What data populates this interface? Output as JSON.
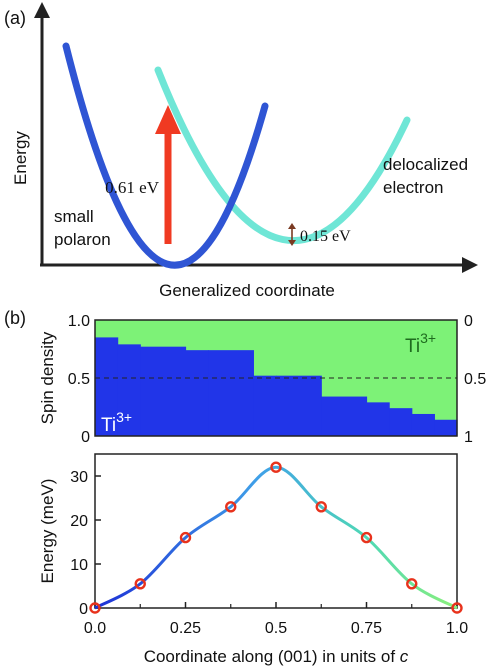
{
  "panel_a": {
    "label": "(a)",
    "ylabel": "Energy",
    "xlabel": "Generalized coordinate",
    "label_small": "small",
    "label_polaron": "polaron",
    "label_delocalized": "delocalized",
    "label_electron": "electron",
    "gap_label": "0.61 eV",
    "offset_label": "0.15 eV",
    "colors": {
      "polaron": "#2f55d4",
      "electron": "#6fe6d6",
      "arrow": "#f03a22"
    }
  },
  "panel_b": {
    "label": "(b)",
    "spin": {
      "ylabel": "Spin density",
      "left_ticks": [
        "1.0",
        "0.5",
        "0"
      ],
      "right_ticks": [
        "0",
        "0.5",
        "1"
      ],
      "ti_label": "Ti",
      "ti_sup": "3+",
      "colors": {
        "blue": "#2135e8",
        "green": "#7df277"
      }
    },
    "energy": {
      "ylabel": "Energy  (meV)",
      "xlabel_main": "Coordinate along (001) in units of ",
      "xlabel_italic": "c",
      "yticks": [
        "0",
        "10",
        "20",
        "30"
      ],
      "xticks": [
        "0.0",
        "0.25",
        "0.5",
        "0.75",
        "1.0"
      ]
    }
  },
  "chart_data": [
    {
      "type": "line",
      "title": "",
      "xlabel": "Generalized coordinate",
      "ylabel": "Energy",
      "series": [
        {
          "name": "small polaron",
          "shape": "parabola",
          "relative_minimum_ev": 0.0
        },
        {
          "name": "delocalized electron",
          "shape": "parabola",
          "relative_minimum_ev": 0.15
        }
      ],
      "annotations": [
        {
          "text": "0.61 eV",
          "type": "vertical-arrow",
          "value_ev": 0.61
        },
        {
          "text": "0.15 eV",
          "type": "double-arrow",
          "value_ev": 0.15
        }
      ]
    },
    {
      "type": "area",
      "ylabel": "Spin density",
      "ylim": [
        0,
        1
      ],
      "x": [
        0.0,
        0.0625,
        0.125,
        0.25,
        0.3125,
        0.4375,
        0.5,
        0.625,
        0.75,
        0.8125,
        0.875,
        0.9375,
        1.0
      ],
      "series": [
        {
          "values": [
            0.85,
            0.79,
            0.77,
            0.74,
            0.74,
            0.52,
            0.52,
            0.34,
            0.29,
            0.24,
            0.19,
            0.14,
            0.14
          ]
        }
      ]
    },
    {
      "type": "line",
      "xlabel": "Coordinate along (001) in units of c",
      "ylabel": "Energy  (meV)",
      "xlim": [
        0,
        1
      ],
      "ylim": [
        0,
        35
      ],
      "series": [
        {
          "x": [
            0.0,
            0.125,
            0.25,
            0.375,
            0.5,
            0.625,
            0.75,
            0.875,
            1.0
          ],
          "values": [
            0,
            5.5,
            16,
            23,
            32,
            23,
            16,
            5.5,
            0
          ]
        }
      ]
    }
  ]
}
